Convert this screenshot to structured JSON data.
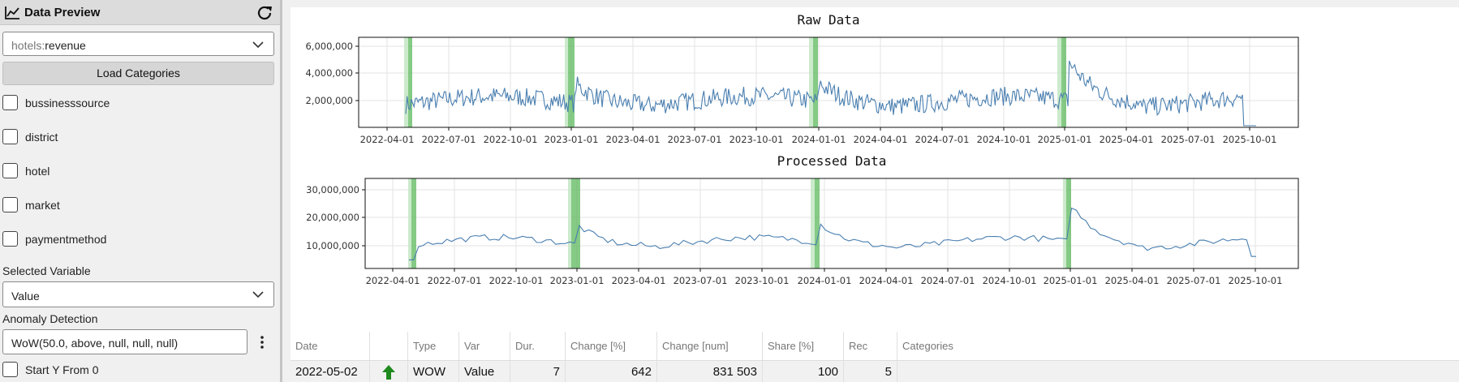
{
  "sidebar": {
    "title": "Data Preview",
    "source": {
      "prefix": "hotels:",
      "name": "revenue"
    },
    "load_label": "Load Categories",
    "categories": [
      "bussinesssource",
      "district",
      "hotel",
      "market",
      "paymentmethod"
    ],
    "selected_variable_label": "Selected Variable",
    "selected_variable": "Value",
    "anomaly_label": "Anomaly Detection",
    "anomaly_value": "WoW(50.0, above, null, null, null)",
    "start_y_label": "Start Y From 0"
  },
  "charts": {
    "raw": {
      "title": "Raw Data",
      "yticks": [
        "2,000,000",
        "4,000,000",
        "6,000,000"
      ],
      "xticks": [
        "2022-04-01",
        "2022-07-01",
        "2022-10-01",
        "2023-01-01",
        "2023-04-01",
        "2023-07-01",
        "2023-10-01",
        "2024-01-01",
        "2024-04-01",
        "2024-07-01",
        "2024-10-01",
        "2025-01-01",
        "2025-04-01",
        "2025-07-01",
        "2025-10-01"
      ]
    },
    "processed": {
      "title": "Processed Data",
      "yticks": [
        "10,000,000",
        "20,000,000",
        "30,000,000"
      ],
      "xticks": [
        "2022-04-01",
        "2022-07-01",
        "2022-10-01",
        "2023-01-01",
        "2023-04-01",
        "2023-07-01",
        "2023-10-01",
        "2024-01-01",
        "2024-04-01",
        "2024-07-01",
        "2024-10-01",
        "2025-01-01",
        "2025-04-01",
        "2025-07-01",
        "2025-10-01"
      ]
    }
  },
  "table": {
    "headers": [
      "Date",
      "",
      "Type",
      "Var",
      "Dur.",
      "Change [%]",
      "Change [num]",
      "Share [%]",
      "Rec",
      "Categories"
    ],
    "rows": [
      {
        "date": "2022-05-02",
        "direction_icon": "arrow-up-icon",
        "type": "WOW",
        "var": "Value",
        "dur": "7",
        "change_pct": "642",
        "change_num": "831 503",
        "share": "100",
        "rec": "5",
        "categories": ""
      }
    ]
  },
  "colors": {
    "line": "#4a7fb0",
    "anomaly": "#5cb85c",
    "anomaly_light": "#c7e8c7",
    "arrow": "#1e8a1e"
  }
}
